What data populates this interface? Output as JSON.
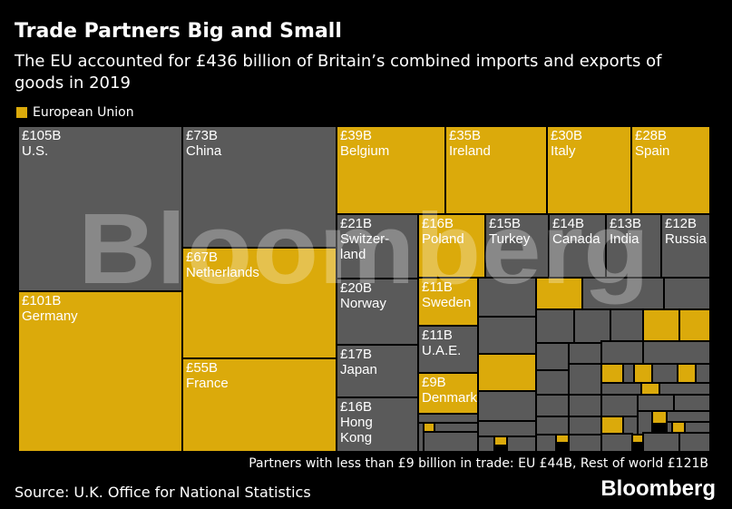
{
  "chart_data": {
    "type": "treemap",
    "title": "Trade Partners Big and Small",
    "subtitle": "The EU accounted for £436 billion of Britain’s combined imports and exports of goods in 2019",
    "legend": [
      {
        "label": "European Union",
        "color": "#dbaa0b"
      }
    ],
    "colors": {
      "eu": "#dbaa0b",
      "other": "#5a5a5a",
      "border": "#000000"
    },
    "unit": "£ billion",
    "items": [
      {
        "name": "U.S.",
        "value": 105,
        "label": "£105B",
        "group": "other"
      },
      {
        "name": "Germany",
        "value": 101,
        "label": "£101B",
        "group": "eu"
      },
      {
        "name": "China",
        "value": 73,
        "label": "£73B",
        "group": "other"
      },
      {
        "name": "Netherlands",
        "value": 67,
        "label": "£67B",
        "group": "eu"
      },
      {
        "name": "France",
        "value": 55,
        "label": "£55B",
        "group": "eu"
      },
      {
        "name": "Belgium",
        "value": 39,
        "label": "£39B",
        "group": "eu"
      },
      {
        "name": "Ireland",
        "value": 35,
        "label": "£35B",
        "group": "eu"
      },
      {
        "name": "Italy",
        "value": 30,
        "label": "£30B",
        "group": "eu"
      },
      {
        "name": "Spain",
        "value": 28,
        "label": "£28B",
        "group": "eu"
      },
      {
        "name": "Switzer-\nland",
        "value": 21,
        "label": "£21B",
        "group": "other"
      },
      {
        "name": "Norway",
        "value": 20,
        "label": "£20B",
        "group": "other"
      },
      {
        "name": "Japan",
        "value": 17,
        "label": "£17B",
        "group": "other"
      },
      {
        "name": "Hong\nKong",
        "value": 16,
        "label": "£16B",
        "group": "other"
      },
      {
        "name": "Poland",
        "value": 16,
        "label": "£16B",
        "group": "eu"
      },
      {
        "name": "Turkey",
        "value": 15,
        "label": "£15B",
        "group": "other"
      },
      {
        "name": "Canada",
        "value": 14,
        "label": "£14B",
        "group": "other"
      },
      {
        "name": "India",
        "value": 13,
        "label": "£13B",
        "group": "other"
      },
      {
        "name": "Russia",
        "value": 12,
        "label": "£12B",
        "group": "other"
      },
      {
        "name": "Sweden",
        "value": 11,
        "label": "£11B",
        "group": "eu"
      },
      {
        "name": "U.A.E.",
        "value": 11,
        "label": "£11B",
        "group": "other"
      },
      {
        "name": "Denmark",
        "value": 9,
        "label": "£9B",
        "group": "eu"
      }
    ],
    "small_partners": {
      "eu": 44,
      "rest_of_world": 121
    },
    "footnote": "Partners with less than £9 billion in trade: EU £44B, Rest of world £121B"
  },
  "watermark": "Bloomberg",
  "source": "Source: U.K. Office for National Statistics",
  "brand": "Bloomberg"
}
